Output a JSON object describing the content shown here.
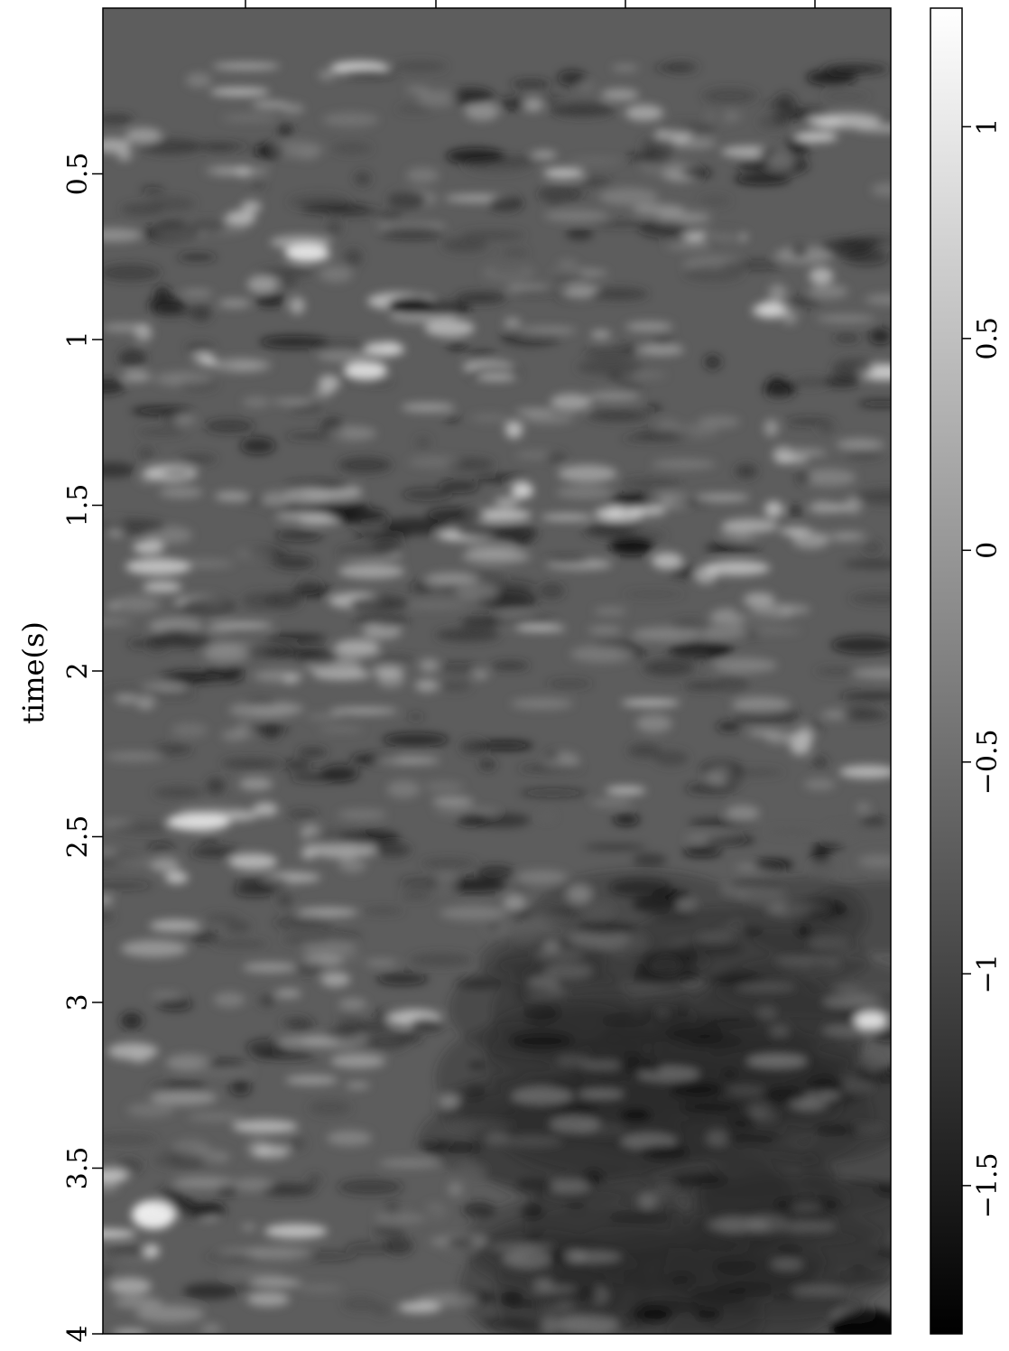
{
  "chart_data": {
    "type": "heatmap",
    "title": "",
    "ylabel": "time(s)",
    "xlabel": "",
    "ylim": [
      0.0,
      4.0
    ],
    "y_ticks": [
      "0.5",
      "1",
      "1.5",
      "2",
      "2.5",
      "3",
      "3.5",
      "4"
    ],
    "y_tick_values": [
      0.5,
      1.0,
      1.5,
      2.0,
      2.5,
      3.0,
      3.5,
      4.0
    ],
    "x_ticks_labeled": false,
    "colormap": "gray",
    "colorbar": {
      "range": [
        -1.85,
        1.28
      ],
      "ticks": [
        "1",
        "0.5",
        "0",
        "−0.5",
        "−1",
        "−1.5"
      ],
      "tick_values": [
        1.0,
        0.5,
        0.0,
        -0.5,
        -1.0,
        -1.5
      ]
    }
  }
}
